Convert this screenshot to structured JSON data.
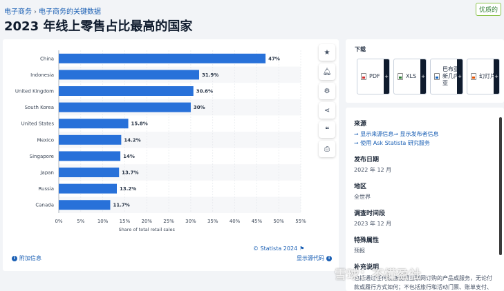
{
  "breadcrumb": {
    "item1": "电子商务",
    "item2": "电子商务的关键数据"
  },
  "badge": "优质的",
  "page_title": "2023 年线上零售占比最高的国家",
  "chart_data": {
    "type": "bar",
    "orientation": "horizontal",
    "categories": [
      "China",
      "Indonesia",
      "United Kingdom",
      "South Korea",
      "United States",
      "Mexico",
      "Singapore",
      "Japan",
      "Russia",
      "Canada"
    ],
    "values": [
      47,
      31.9,
      30.6,
      30,
      15.8,
      14.2,
      14,
      13.7,
      13.2,
      11.7
    ],
    "value_labels": [
      "47%",
      "31.9%",
      "30.6%",
      "30%",
      "15.8%",
      "14.2%",
      "14%",
      "13.7%",
      "13.2%",
      "11.7%"
    ],
    "xlabel": "Share of total retail sales",
    "ticks": [
      0,
      5,
      10,
      15,
      20,
      25,
      30,
      35,
      40,
      45,
      50,
      55
    ],
    "tick_labels": [
      "0%",
      "5%",
      "10%",
      "15%",
      "20%",
      "25%",
      "30%",
      "35%",
      "40%",
      "45%",
      "50%",
      "55%"
    ],
    "xlim": [
      0,
      55
    ],
    "bar_color": "#2871d9",
    "grid": true
  },
  "chart_footer": {
    "credit": "© Statista 2024",
    "more_info": "附加信息",
    "show_source": "显示源代码"
  },
  "toolbar": {
    "icons": [
      "star-icon",
      "bell-icon",
      "gear-icon",
      "share-icon",
      "quote-icon",
      "print-icon"
    ]
  },
  "download": {
    "title": "下载",
    "buttons": [
      {
        "label": "PDF",
        "icon": "pdf-file-icon"
      },
      {
        "label": "XLS",
        "icon": "xls-file-icon"
      },
      {
        "label": "巴布亚新几内亚",
        "icon": "doc-file-icon"
      },
      {
        "label": "幻灯片",
        "icon": "ppt-file-icon"
      }
    ],
    "plus": "+"
  },
  "meta": {
    "source_h": "来源",
    "source_link1": "➞ 显示来源信息➞ 显示发布者信息",
    "source_link2": "➞ 使用 Ask Statista 研究服务",
    "release_h": "发布日期",
    "release_v": "2022 年 12 月",
    "region_h": "地区",
    "region_v": "全世界",
    "survey_h": "调查时间段",
    "survey_v": "2023 年 12 月",
    "special_h": "特殊属性",
    "special_v": "预报",
    "notes_h": "补充说明",
    "notes_v": "包括通过任何设备使用互联网订购的产品或服务，无论付款或履行方式如何；不包括旅行和活动门票、账单支付、税款或汇款、餐饮服务和饮酒场所销售、赌博和其他罪恶"
  },
  "watermark": "雪球：不懂盈社"
}
